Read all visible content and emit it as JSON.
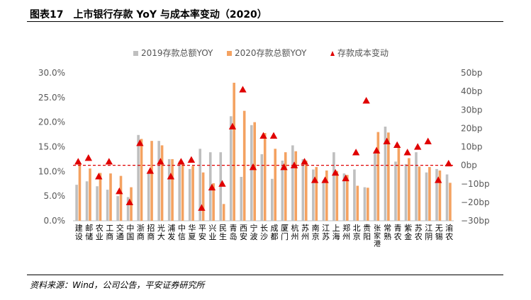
{
  "title": "图表17　上市银行存款 YoY 与成本率变动（2020）",
  "source": "资料来源：Wind，公司公告，平安证券研究所",
  "colors": {
    "series2019": "#bfbfbf",
    "series2020": "#f4a261",
    "cost": "#e00000",
    "refline": "#e00000"
  },
  "chart_data": {
    "type": "bar",
    "categories": [
      "建设",
      "邮储",
      "农业",
      "工商",
      "交通",
      "中国",
      "浙商",
      "招商",
      "光大",
      "浦发",
      "中信",
      "华夏",
      "平安",
      "兴业",
      "民生",
      "青岛",
      "西安",
      "宁波",
      "长沙",
      "成都",
      "厦门",
      "杭州",
      "苏州",
      "南京",
      "江苏",
      "上海",
      "郑州",
      "北京",
      "贵阳",
      "张家港",
      "常熟",
      "青农",
      "紫金",
      "苏农",
      "江阴",
      "无锡",
      "渝农"
    ],
    "series": [
      {
        "name": "2019存款总额YOY",
        "axis": "left",
        "values": [
          7.3,
          8.0,
          7.0,
          6.3,
          5.0,
          4.8,
          17.4,
          9.7,
          16.2,
          12.5,
          12.0,
          10.5,
          14.6,
          13.9,
          13.9,
          21.2,
          8.9,
          19.4,
          13.5,
          8.5,
          12.2,
          15.3,
          12.5,
          10.4,
          8.2,
          13.9,
          9.6,
          10.4,
          6.8,
          13.7,
          19.1,
          12.0,
          11.5,
          13.9,
          9.8,
          10.5,
          9.4
        ]
      },
      {
        "name": "2020存款总额YOY",
        "axis": "left",
        "values": [
          11.4,
          10.6,
          9.7,
          9.6,
          9.1,
          6.8,
          16.6,
          16.2,
          15.3,
          12.5,
          11.4,
          11.1,
          9.8,
          7.6,
          3.4,
          28.0,
          22.3,
          20.0,
          17.8,
          14.6,
          13.9,
          14.1,
          12.2,
          10.9,
          10.2,
          10.1,
          9.3,
          7.1,
          6.7,
          18.0,
          17.9,
          14.9,
          12.7,
          11.0,
          10.9,
          10.2,
          7.7
        ]
      },
      {
        "name": "存款成本变动",
        "axis": "right",
        "unit": "bp",
        "marker": "triangle",
        "values": [
          2,
          4,
          -6,
          2,
          -14,
          -20,
          12,
          -3,
          2,
          -6,
          2,
          3,
          -23,
          -12,
          -10,
          21,
          41,
          -1,
          16,
          16,
          -1,
          0,
          2,
          -8,
          -8,
          -4,
          -7,
          7,
          35,
          8,
          13,
          11,
          7,
          10,
          13,
          -8,
          1
        ]
      }
    ],
    "left_axis": {
      "min": 0,
      "max": 30,
      "step": 5,
      "tick_labels": [
        "0.0%",
        "5.0%",
        "10.0%",
        "15.0%",
        "20.0%",
        "25.0%",
        "30.0%"
      ]
    },
    "right_axis": {
      "min": -30,
      "max": 50,
      "step": 10,
      "tick_labels": [
        "−30bp",
        "−20bp",
        "−10bp",
        "0bp",
        "10bp",
        "20bp",
        "30bp",
        "40bp",
        "50bp"
      ]
    },
    "reference_line": {
      "axis": "right",
      "value": 0,
      "style": "dashed"
    },
    "legend_position": "top"
  }
}
